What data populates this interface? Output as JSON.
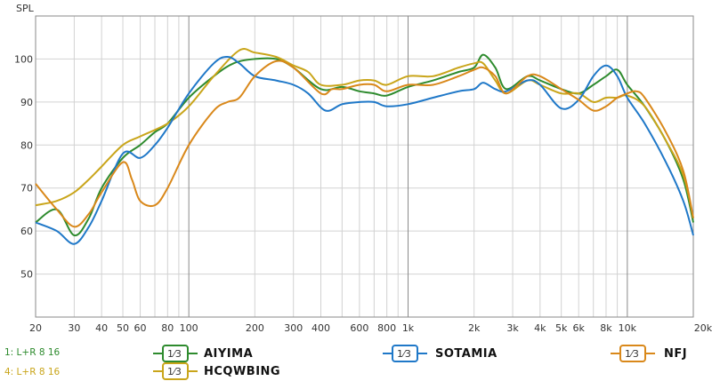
{
  "chart_data": {
    "type": "line",
    "ylabel": "SPL",
    "xscale": "log",
    "xlim": [
      20,
      20000
    ],
    "ylim": [
      40,
      110
    ],
    "grid": true,
    "x_tick_labels": [
      {
        "f": 20,
        "label": "20"
      },
      {
        "f": 30,
        "label": "30"
      },
      {
        "f": 40,
        "label": "40"
      },
      {
        "f": 50,
        "label": "50"
      },
      {
        "f": 60,
        "label": "60"
      },
      {
        "f": 80,
        "label": "80"
      },
      {
        "f": 100,
        "label": "100"
      },
      {
        "f": 200,
        "label": "200"
      },
      {
        "f": 300,
        "label": "300"
      },
      {
        "f": 400,
        "label": "400"
      },
      {
        "f": 600,
        "label": "600"
      },
      {
        "f": 800,
        "label": "800"
      },
      {
        "f": 1000,
        "label": "1k"
      },
      {
        "f": 2000,
        "label": "2k"
      },
      {
        "f": 3000,
        "label": "3k"
      },
      {
        "f": 4000,
        "label": "4k"
      },
      {
        "f": 5000,
        "label": "5k"
      },
      {
        "f": 6000,
        "label": "6k"
      },
      {
        "f": 8000,
        "label": "8k"
      },
      {
        "f": 10000,
        "label": "10k"
      },
      {
        "f": 20000,
        "label": "20kHz"
      }
    ],
    "y_ticks": [
      50,
      60,
      70,
      80,
      90,
      100
    ],
    "series": [
      {
        "name": "AIYIMA",
        "color": "#2e8b2e",
        "points": [
          [
            20,
            62
          ],
          [
            25,
            65
          ],
          [
            30,
            59
          ],
          [
            35,
            63
          ],
          [
            40,
            70
          ],
          [
            50,
            77
          ],
          [
            60,
            80
          ],
          [
            70,
            83
          ],
          [
            80,
            85
          ],
          [
            100,
            91
          ],
          [
            130,
            96
          ],
          [
            160,
            99
          ],
          [
            200,
            100
          ],
          [
            250,
            100
          ],
          [
            300,
            98
          ],
          [
            400,
            93
          ],
          [
            500,
            93.5
          ],
          [
            600,
            92.5
          ],
          [
            700,
            92
          ],
          [
            800,
            91.5
          ],
          [
            1000,
            93.5
          ],
          [
            1300,
            95
          ],
          [
            1700,
            97
          ],
          [
            2000,
            98
          ],
          [
            2200,
            101
          ],
          [
            2500,
            98
          ],
          [
            2800,
            93
          ],
          [
            3500,
            96
          ],
          [
            4000,
            95
          ],
          [
            5000,
            93
          ],
          [
            6000,
            92
          ],
          [
            7000,
            94
          ],
          [
            8000,
            96
          ],
          [
            9000,
            97.5
          ],
          [
            10000,
            94
          ],
          [
            12000,
            89
          ],
          [
            15000,
            81
          ],
          [
            18000,
            72
          ],
          [
            20000,
            62
          ]
        ]
      },
      {
        "name": "HCQWBING",
        "color": "#c9a51a",
        "points": [
          [
            20,
            66
          ],
          [
            25,
            67
          ],
          [
            30,
            69
          ],
          [
            35,
            72
          ],
          [
            40,
            75
          ],
          [
            50,
            80
          ],
          [
            60,
            82
          ],
          [
            80,
            85
          ],
          [
            100,
            89
          ],
          [
            130,
            96
          ],
          [
            170,
            102
          ],
          [
            200,
            101.5
          ],
          [
            250,
            100.5
          ],
          [
            300,
            98.5
          ],
          [
            350,
            97
          ],
          [
            400,
            94
          ],
          [
            500,
            94
          ],
          [
            600,
            95
          ],
          [
            700,
            95
          ],
          [
            800,
            94
          ],
          [
            1000,
            96
          ],
          [
            1300,
            96
          ],
          [
            1700,
            98
          ],
          [
            2000,
            99
          ],
          [
            2200,
            99
          ],
          [
            2500,
            95
          ],
          [
            2800,
            92
          ],
          [
            3500,
            95
          ],
          [
            4000,
            94
          ],
          [
            5000,
            92
          ],
          [
            6000,
            92
          ],
          [
            7000,
            90
          ],
          [
            8000,
            91
          ],
          [
            9000,
            91
          ],
          [
            10000,
            91.5
          ],
          [
            12000,
            89
          ],
          [
            15000,
            81
          ],
          [
            18000,
            73
          ],
          [
            20000,
            63
          ]
        ]
      },
      {
        "name": "SOTAMIA",
        "color": "#1f78c8",
        "points": [
          [
            20,
            62
          ],
          [
            25,
            60
          ],
          [
            30,
            57
          ],
          [
            35,
            61
          ],
          [
            40,
            67
          ],
          [
            50,
            78
          ],
          [
            60,
            77
          ],
          [
            70,
            80
          ],
          [
            80,
            84
          ],
          [
            100,
            92
          ],
          [
            130,
            99
          ],
          [
            150,
            100.5
          ],
          [
            170,
            99
          ],
          [
            200,
            96
          ],
          [
            250,
            95
          ],
          [
            300,
            94
          ],
          [
            350,
            92
          ],
          [
            420,
            88
          ],
          [
            500,
            89.5
          ],
          [
            600,
            90
          ],
          [
            700,
            90
          ],
          [
            800,
            89
          ],
          [
            1000,
            89.5
          ],
          [
            1300,
            91
          ],
          [
            1700,
            92.5
          ],
          [
            2000,
            93
          ],
          [
            2200,
            94.5
          ],
          [
            2500,
            93
          ],
          [
            2800,
            92.5
          ],
          [
            3500,
            95
          ],
          [
            4000,
            94
          ],
          [
            5000,
            88.5
          ],
          [
            6000,
            90.5
          ],
          [
            7000,
            96
          ],
          [
            8000,
            98.5
          ],
          [
            9000,
            96
          ],
          [
            10000,
            91
          ],
          [
            12000,
            85
          ],
          [
            15000,
            76
          ],
          [
            18000,
            67
          ],
          [
            20000,
            59
          ]
        ]
      },
      {
        "name": "NFJ",
        "color": "#d9881a",
        "points": [
          [
            20,
            71
          ],
          [
            25,
            65
          ],
          [
            30,
            61
          ],
          [
            35,
            64
          ],
          [
            40,
            69
          ],
          [
            50,
            76
          ],
          [
            55,
            72
          ],
          [
            60,
            67
          ],
          [
            70,
            66
          ],
          [
            80,
            70
          ],
          [
            100,
            80
          ],
          [
            130,
            88
          ],
          [
            150,
            90
          ],
          [
            170,
            91
          ],
          [
            200,
            96
          ],
          [
            250,
            99.5
          ],
          [
            300,
            98
          ],
          [
            400,
            92
          ],
          [
            450,
            93
          ],
          [
            500,
            93
          ],
          [
            600,
            94
          ],
          [
            700,
            94
          ],
          [
            800,
            92.5
          ],
          [
            1000,
            94
          ],
          [
            1300,
            94
          ],
          [
            1700,
            96
          ],
          [
            2000,
            97.5
          ],
          [
            2200,
            98
          ],
          [
            2500,
            96
          ],
          [
            2800,
            92
          ],
          [
            3500,
            96
          ],
          [
            4000,
            96
          ],
          [
            5000,
            93
          ],
          [
            6000,
            90.5
          ],
          [
            7000,
            88
          ],
          [
            8000,
            89
          ],
          [
            9000,
            91
          ],
          [
            10000,
            92
          ],
          [
            11000,
            92.5
          ],
          [
            12000,
            91
          ],
          [
            15000,
            83
          ],
          [
            18000,
            74
          ],
          [
            20000,
            63
          ]
        ]
      }
    ]
  },
  "legend": [
    {
      "name": "AIYIMA",
      "frac": "1⁄3",
      "color": "#2e8b2e"
    },
    {
      "name": "HCQWBING",
      "frac": "1⁄3",
      "color": "#c9a51a"
    },
    {
      "name": "SOTAMIA",
      "frac": "1⁄3",
      "color": "#1f78c8"
    },
    {
      "name": "NFJ",
      "frac": "1⁄3",
      "color": "#d9881a"
    }
  ],
  "traces": [
    {
      "label": "1: L+R 8 16",
      "color": "#2e8b2e"
    },
    {
      "label": "4: L+R 8 16",
      "color": "#c9a51a"
    }
  ]
}
